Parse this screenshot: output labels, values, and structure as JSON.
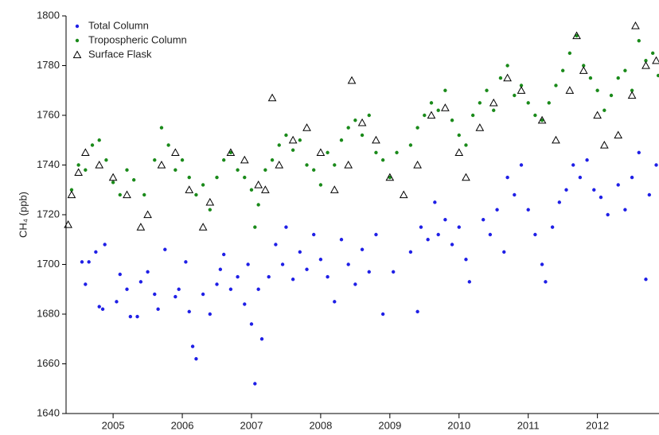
{
  "chart_data": {
    "type": "scatter",
    "y_label": "CH₄ (ppb)",
    "xlim": [
      2004.32,
      2012.89
    ],
    "xticks": [
      2005,
      2006,
      2007,
      2008,
      2009,
      2010,
      2011,
      2012
    ],
    "ylim": [
      1640,
      1800
    ],
    "yticks": [
      1640,
      1660,
      1680,
      1700,
      1720,
      1740,
      1760,
      1780,
      1800
    ],
    "legend": "upper left",
    "series": [
      {
        "name": "Total Column",
        "color": "#1f1fe6",
        "marker": "circle",
        "x": [
          2004.55,
          2004.6,
          2004.65,
          2004.75,
          2004.8,
          2004.88,
          2004.85,
          2005.05,
          2005.1,
          2005.2,
          2005.25,
          2005.35,
          2005.4,
          2005.5,
          2005.6,
          2005.65,
          2005.75,
          2005.9,
          2005.95,
          2006.05,
          2006.1,
          2006.15,
          2006.2,
          2006.3,
          2006.4,
          2006.5,
          2006.55,
          2006.6,
          2006.7,
          2006.8,
          2006.9,
          2006.95,
          2007.0,
          2007.05,
          2007.1,
          2007.15,
          2007.25,
          2007.35,
          2007.45,
          2007.5,
          2007.6,
          2007.7,
          2007.8,
          2007.9,
          2008.0,
          2008.1,
          2008.2,
          2008.3,
          2008.4,
          2008.5,
          2008.6,
          2008.7,
          2008.8,
          2008.9,
          2009.05,
          2009.3,
          2009.4,
          2009.45,
          2009.55,
          2009.65,
          2009.7,
          2009.8,
          2009.9,
          2010.0,
          2010.1,
          2010.15,
          2010.35,
          2010.45,
          2010.55,
          2010.65,
          2010.7,
          2010.8,
          2010.9,
          2011.0,
          2011.1,
          2011.2,
          2011.25,
          2011.35,
          2011.45,
          2011.55,
          2011.65,
          2011.75,
          2011.85,
          2011.95,
          2012.05,
          2012.15,
          2012.3,
          2012.4,
          2012.5,
          2012.6,
          2012.7,
          2012.75,
          2012.85
        ],
        "values": [
          1701,
          1692,
          1701,
          1705,
          1683,
          1708,
          1682,
          1685,
          1696,
          1690,
          1679,
          1679,
          1693,
          1697,
          1688,
          1682,
          1706,
          1687,
          1690,
          1701,
          1681,
          1667,
          1662,
          1688,
          1680,
          1692,
          1698,
          1704,
          1690,
          1695,
          1684,
          1700,
          1676,
          1652,
          1690,
          1670,
          1695,
          1708,
          1700,
          1715,
          1694,
          1705,
          1698,
          1712,
          1702,
          1695,
          1685,
          1710,
          1700,
          1692,
          1706,
          1697,
          1712,
          1680,
          1697,
          1705,
          1681,
          1715,
          1710,
          1725,
          1712,
          1718,
          1708,
          1715,
          1702,
          1693,
          1718,
          1712,
          1722,
          1705,
          1735,
          1728,
          1740,
          1722,
          1712,
          1700,
          1693,
          1715,
          1725,
          1730,
          1740,
          1735,
          1742,
          1730,
          1727,
          1720,
          1732,
          1722,
          1735,
          1745,
          1694,
          1728,
          1740
        ]
      },
      {
        "name": "Tropospheric Column",
        "color": "#1a8a1a",
        "marker": "circle",
        "x": [
          2004.4,
          2004.5,
          2004.6,
          2004.7,
          2004.8,
          2004.9,
          2005.0,
          2005.1,
          2005.2,
          2005.3,
          2005.45,
          2005.6,
          2005.7,
          2005.8,
          2005.9,
          2006.0,
          2006.1,
          2006.2,
          2006.3,
          2006.4,
          2006.5,
          2006.6,
          2006.7,
          2006.8,
          2006.9,
          2007.0,
          2007.05,
          2007.1,
          2007.2,
          2007.3,
          2007.4,
          2007.5,
          2007.6,
          2007.7,
          2007.8,
          2007.9,
          2008.0,
          2008.1,
          2008.2,
          2008.3,
          2008.4,
          2008.5,
          2008.6,
          2008.7,
          2008.8,
          2008.9,
          2009.0,
          2009.1,
          2009.3,
          2009.4,
          2009.5,
          2009.6,
          2009.7,
          2009.8,
          2009.9,
          2010.0,
          2010.1,
          2010.2,
          2010.3,
          2010.4,
          2010.5,
          2010.6,
          2010.7,
          2010.8,
          2010.9,
          2011.0,
          2011.1,
          2011.2,
          2011.3,
          2011.4,
          2011.5,
          2011.6,
          2011.7,
          2011.8,
          2011.9,
          2012.0,
          2012.1,
          2012.2,
          2012.3,
          2012.4,
          2012.5,
          2012.6,
          2012.7,
          2012.8,
          2012.88
        ],
        "values": [
          1730,
          1740,
          1738,
          1748,
          1750,
          1742,
          1733,
          1728,
          1738,
          1734,
          1728,
          1742,
          1755,
          1748,
          1738,
          1742,
          1735,
          1728,
          1732,
          1722,
          1735,
          1742,
          1745,
          1738,
          1735,
          1730,
          1715,
          1724,
          1738,
          1742,
          1748,
          1752,
          1746,
          1750,
          1740,
          1738,
          1732,
          1745,
          1740,
          1750,
          1755,
          1758,
          1752,
          1760,
          1745,
          1742,
          1735,
          1745,
          1748,
          1755,
          1760,
          1765,
          1762,
          1770,
          1758,
          1752,
          1748,
          1760,
          1765,
          1770,
          1762,
          1775,
          1780,
          1768,
          1772,
          1765,
          1760,
          1758,
          1765,
          1772,
          1778,
          1785,
          1792,
          1780,
          1775,
          1770,
          1762,
          1768,
          1775,
          1778,
          1770,
          1790,
          1782,
          1785,
          1776
        ]
      },
      {
        "name": "Surface Flask",
        "color": "#000000",
        "marker": "triangle",
        "x": [
          2004.35,
          2004.4,
          2004.5,
          2004.6,
          2004.8,
          2005.0,
          2005.2,
          2005.4,
          2005.5,
          2005.7,
          2005.9,
          2006.1,
          2006.3,
          2006.4,
          2006.7,
          2006.9,
          2007.1,
          2007.2,
          2007.3,
          2007.4,
          2007.6,
          2007.8,
          2008.0,
          2008.2,
          2008.4,
          2008.45,
          2008.6,
          2008.8,
          2009.0,
          2009.2,
          2009.4,
          2009.6,
          2009.8,
          2010.0,
          2010.1,
          2010.3,
          2010.5,
          2010.7,
          2010.9,
          2011.2,
          2011.4,
          2011.6,
          2011.7,
          2011.8,
          2012.0,
          2012.1,
          2012.3,
          2012.5,
          2012.55,
          2012.7,
          2012.85
        ],
        "values": [
          1716,
          1728,
          1737,
          1745,
          1740,
          1735,
          1728,
          1715,
          1720,
          1740,
          1745,
          1730,
          1715,
          1725,
          1745,
          1742,
          1732,
          1730,
          1767,
          1740,
          1750,
          1755,
          1745,
          1730,
          1740,
          1774,
          1757,
          1750,
          1735,
          1728,
          1740,
          1760,
          1763,
          1745,
          1735,
          1755,
          1765,
          1775,
          1770,
          1758,
          1750,
          1770,
          1792,
          1778,
          1760,
          1748,
          1752,
          1768,
          1796,
          1780,
          1782
        ]
      }
    ]
  }
}
